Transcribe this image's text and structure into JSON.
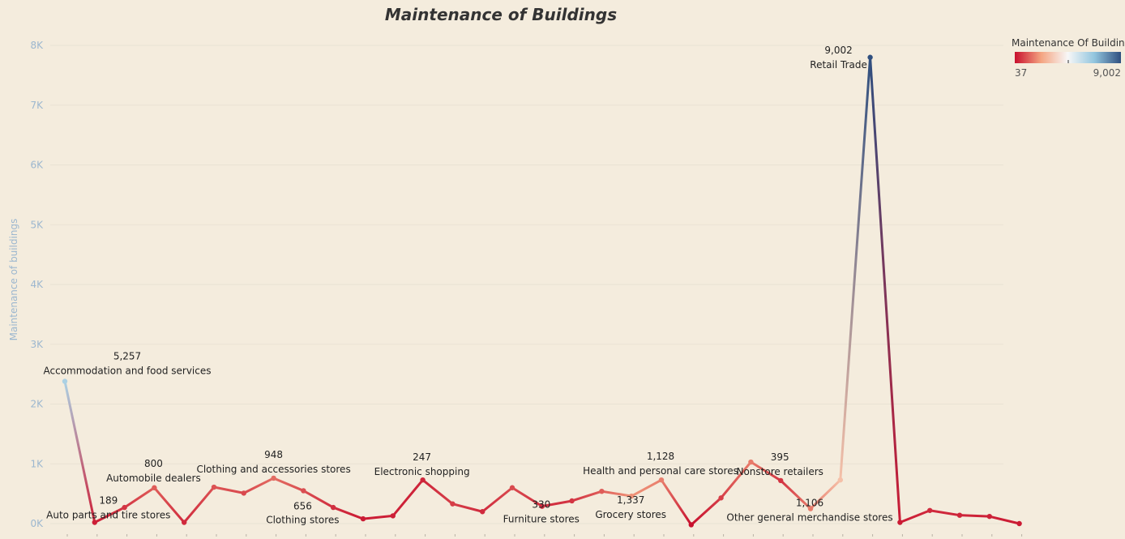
{
  "chart_data": {
    "type": "line",
    "title": "Maintenance of Buildings",
    "ylabel": "Maintenance of buildings",
    "xlabel": "",
    "ylim": [
      0,
      8200
    ],
    "yticks": [
      0,
      1000,
      2000,
      3000,
      4000,
      5000,
      6000,
      7000,
      8000
    ],
    "ytick_labels": [
      "0K",
      "1K",
      "2K",
      "3K",
      "4K",
      "5K",
      "6K",
      "7K",
      "8K"
    ],
    "grid": true,
    "legend": {
      "title": "Maintenance Of Buildin..",
      "min_label": "37",
      "max_label": "9,002",
      "placement": "top-right",
      "colors": [
        "#c8102e",
        "#f4a582",
        "#f7f7f7",
        "#92c5de",
        "#2f4f7f"
      ]
    },
    "x": [
      0,
      1,
      2,
      3,
      4,
      5,
      6,
      7,
      8,
      9,
      10,
      11,
      12,
      13,
      14,
      15,
      16,
      17,
      18,
      19,
      20,
      21,
      22,
      23,
      24,
      25,
      26,
      27,
      28,
      29,
      30,
      31,
      32
    ],
    "y": [
      2380,
      20,
      270,
      600,
      20,
      610,
      510,
      760,
      550,
      270,
      80,
      130,
      730,
      330,
      200,
      600,
      290,
      380,
      540,
      460,
      730,
      -20,
      430,
      1030,
      720,
      250,
      730,
      7800,
      20,
      220,
      140,
      120,
      0
    ],
    "color_values": [
      5257,
      189,
      400,
      800,
      300,
      700,
      600,
      948,
      656,
      350,
      150,
      200,
      247,
      500,
      300,
      620,
      330,
      400,
      800,
      1337,
      1128,
      37,
      500,
      1100,
      395,
      1106,
      2000,
      9002,
      150,
      300,
      250,
      200,
      150
    ],
    "annotations": [
      {
        "index": 0,
        "value": "5,257",
        "label": "Accommodation and food services"
      },
      {
        "index": 1,
        "value": "189",
        "label": "Auto parts and tire stores"
      },
      {
        "index": 3,
        "value": "800",
        "label": "Automobile dealers"
      },
      {
        "index": 7,
        "value": "948",
        "label": "Clothing and accessories stores"
      },
      {
        "index": 8,
        "value": "656",
        "label": "Clothing stores"
      },
      {
        "index": 12,
        "value": "247",
        "label": "Electronic shopping"
      },
      {
        "index": 16,
        "value": "330",
        "label": "Furniture stores"
      },
      {
        "index": 19,
        "value": "1,337",
        "label": "Grocery stores"
      },
      {
        "index": 20,
        "value": "1,128",
        "label": "Health and personal care stores"
      },
      {
        "index": 24,
        "value": "395",
        "label": "Nonstore retailers"
      },
      {
        "index": 25,
        "value": "1,106",
        "label": "Other general merchandise stores"
      },
      {
        "index": 27,
        "value": "9,002",
        "label": "Retail Trade"
      }
    ]
  }
}
